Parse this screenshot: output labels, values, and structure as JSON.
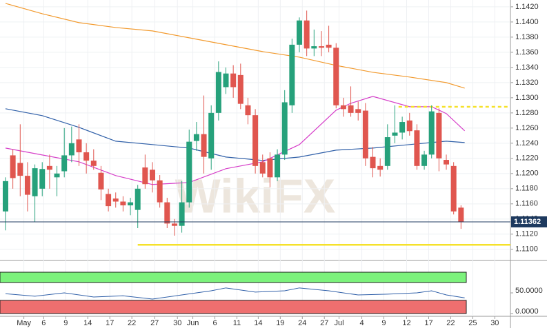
{
  "chart_data": {
    "type": "candlestick",
    "watermark": "WikiFX",
    "xlim": [
      -0.75,
      68.73
    ],
    "ylim": [
      1.1088,
      1.1429
    ],
    "xticks": [
      {
        "value": 2.5,
        "label": "May"
      },
      {
        "value": 5.2,
        "label": "6"
      },
      {
        "value": 8.2,
        "label": "9"
      },
      {
        "value": 11.2,
        "label": "14"
      },
      {
        "value": 14.2,
        "label": "17"
      },
      {
        "value": 17.2,
        "label": "22"
      },
      {
        "value": 20.3,
        "label": "27"
      },
      {
        "value": 23.4,
        "label": "30"
      },
      {
        "value": 25.5,
        "label": "Jun"
      },
      {
        "value": 28.5,
        "label": "6"
      },
      {
        "value": 31.5,
        "label": "11"
      },
      {
        "value": 34.4,
        "label": "14"
      },
      {
        "value": 37.4,
        "label": "19"
      },
      {
        "value": 40.4,
        "label": "24"
      },
      {
        "value": 43.4,
        "label": "27"
      },
      {
        "value": 45.4,
        "label": "Jul"
      },
      {
        "value": 48.5,
        "label": "4"
      },
      {
        "value": 51.5,
        "label": "9"
      },
      {
        "value": 54.6,
        "label": "12"
      },
      {
        "value": 57.6,
        "label": "17"
      },
      {
        "value": 60.6,
        "label": "22"
      },
      {
        "value": 63.6,
        "label": "25"
      },
      {
        "value": 66.6,
        "label": "30"
      }
    ],
    "yticks": [
      {
        "value": 1.11,
        "label": "1.1100"
      },
      {
        "value": 1.112,
        "label": "1.1120"
      },
      {
        "value": 1.114,
        "label": "1.1140"
      },
      {
        "value": 1.116,
        "label": "1.1160"
      },
      {
        "value": 1.118,
        "label": "1.1180"
      },
      {
        "value": 1.12,
        "label": "1.1200"
      },
      {
        "value": 1.122,
        "label": "1.1220"
      },
      {
        "value": 1.124,
        "label": "1.1240"
      },
      {
        "value": 1.126,
        "label": "1.1260"
      },
      {
        "value": 1.128,
        "label": "1.1280"
      },
      {
        "value": 1.13,
        "label": "1.1300"
      },
      {
        "value": 1.132,
        "label": "1.1320"
      },
      {
        "value": 1.134,
        "label": "1.1340"
      },
      {
        "value": 1.136,
        "label": "1.1360"
      },
      {
        "value": 1.138,
        "label": "1.1380"
      },
      {
        "value": 1.14,
        "label": "1.1400"
      },
      {
        "value": 1.142,
        "label": "1.1420"
      }
    ],
    "grid": true,
    "up_color": "#26a17b",
    "down_color": "#e0564f",
    "open": [
      1.115,
      1.1224,
      1.1214,
      1.1197,
      1.117,
      1.118,
      1.121,
      1.1195,
      1.1203,
      1.1224,
      1.1245,
      1.1228,
      1.1217,
      1.1201,
      1.1173,
      1.1167,
      1.1163,
      1.1158,
      1.1152,
      1.1208,
      1.1205,
      1.1191,
      1.1162,
      1.1134,
      1.1131,
      1.1162,
      1.1243,
      1.1252,
      1.122,
      1.128,
      1.1314,
      1.1332,
      1.133,
      1.129,
      1.1277,
      1.1215,
      1.122,
      1.1195,
      1.1225,
      1.129,
      1.137,
      1.1402,
      1.1365,
      1.1368,
      1.137,
      1.1366,
      1.129,
      1.129,
      1.1285,
      1.1283,
      1.1222,
      1.121,
      1.121,
      1.125,
      1.1254,
      1.127,
      1.1257,
      1.121,
      1.1225,
      1.128,
      1.1218,
      1.121,
      1.1155
    ],
    "high": [
      1.1195,
      1.1232,
      1.1265,
      1.1215,
      1.1212,
      1.1215,
      1.1225,
      1.121,
      1.126,
      1.1262,
      1.1265,
      1.124,
      1.1232,
      1.121,
      1.118,
      1.1175,
      1.117,
      1.1168,
      1.1185,
      1.1225,
      1.1215,
      1.1198,
      1.1168,
      1.114,
      1.119,
      1.1258,
      1.1268,
      1.1303,
      1.129,
      1.1348,
      1.134,
      1.1343,
      1.1345,
      1.13,
      1.1285,
      1.1225,
      1.1228,
      1.1232,
      1.131,
      1.1378,
      1.1406,
      1.1415,
      1.139,
      1.1388,
      1.1395,
      1.1372,
      1.13,
      1.1315,
      1.1295,
      1.1293,
      1.1235,
      1.122,
      1.1265,
      1.129,
      1.1275,
      1.128,
      1.1265,
      1.123,
      1.129,
      1.1286,
      1.1225,
      1.1215,
      1.1158
    ],
    "low": [
      1.1125,
      1.118,
      1.117,
      1.115,
      1.1136,
      1.117,
      1.118,
      1.117,
      1.1195,
      1.1215,
      1.121,
      1.12,
      1.1205,
      1.1165,
      1.115,
      1.1155,
      1.115,
      1.1145,
      1.1128,
      1.118,
      1.1175,
      1.1155,
      1.1128,
      1.1118,
      1.1122,
      1.1155,
      1.123,
      1.12,
      1.1205,
      1.127,
      1.1305,
      1.13,
      1.1285,
      1.1265,
      1.12,
      1.1195,
      1.1182,
      1.119,
      1.1218,
      1.128,
      1.136,
      1.1355,
      1.1355,
      1.1355,
      1.136,
      1.1286,
      1.1275,
      1.1275,
      1.127,
      1.121,
      1.1195,
      1.1196,
      1.1205,
      1.124,
      1.1245,
      1.125,
      1.1205,
      1.1205,
      1.122,
      1.1203,
      1.1205,
      1.1146,
      1.1127
    ],
    "close": [
      1.119,
      1.1194,
      1.1197,
      1.1172,
      1.1207,
      1.1206,
      1.1205,
      1.12,
      1.1224,
      1.124,
      1.1228,
      1.1217,
      1.121,
      1.1179,
      1.1157,
      1.1163,
      1.1158,
      1.1162,
      1.118,
      1.1186,
      1.1191,
      1.1162,
      1.1134,
      1.1131,
      1.1162,
      1.1242,
      1.1252,
      1.1222,
      1.128,
      1.1334,
      1.1332,
      1.1314,
      1.1292,
      1.1277,
      1.121,
      1.12,
      1.1195,
      1.1225,
      1.1294,
      1.137,
      1.1402,
      1.1365,
      1.1368,
      1.1366,
      1.1366,
      1.129,
      1.1285,
      1.128,
      1.128,
      1.122,
      1.1207,
      1.1205,
      1.1248,
      1.1254,
      1.1268,
      1.1256,
      1.121,
      1.1225,
      1.1282,
      1.122,
      1.1212,
      1.115,
      1.1136
    ],
    "lines": [
      {
        "color": "#f29a2e",
        "x": [
          0,
          5,
          10,
          15,
          20,
          25,
          30,
          35,
          40,
          45,
          50,
          55,
          60,
          62.5
        ],
        "values": [
          1.14245,
          1.14109,
          1.13991,
          1.13927,
          1.13882,
          1.13791,
          1.137,
          1.13609,
          1.13536,
          1.13427,
          1.13336,
          1.13273,
          1.132,
          1.13127
        ]
      },
      {
        "color": "#2f5fa8",
        "x": [
          0,
          5,
          10,
          15,
          20,
          25,
          30,
          35,
          40,
          45,
          50,
          55,
          60,
          62.5
        ],
        "values": [
          1.12855,
          1.12764,
          1.12609,
          1.12427,
          1.12382,
          1.12336,
          1.12218,
          1.12173,
          1.12218,
          1.12309,
          1.12336,
          1.12382,
          1.12427,
          1.12409
        ]
      },
      {
        "color": "#d63fc9",
        "x": [
          0,
          5,
          10,
          15,
          20,
          25,
          30,
          35,
          40,
          45,
          47,
          50,
          55,
          58,
          60,
          62.5
        ],
        "values": [
          1.12336,
          1.12245,
          1.12155,
          1.11973,
          1.11855,
          1.11882,
          1.12064,
          1.12155,
          1.12382,
          1.12836,
          1.12927,
          1.13018,
          1.12882,
          1.12882,
          1.12791,
          1.12564
        ]
      }
    ],
    "levels": [
      {
        "value": 1.1288,
        "x": [
          53.5,
          68.5
        ],
        "color": "#f5e12a",
        "dashed": true
      },
      {
        "value": 1.1106,
        "x": [
          18,
          68.73
        ],
        "color": "#f5e12a",
        "dashed": false
      }
    ],
    "last_price": 1.11362,
    "indicator": {
      "ylim": [
        -8.3,
        116.7
      ],
      "yticks": [
        {
          "value": 0,
          "label": "0.0000"
        },
        {
          "value": 50,
          "label": "50.0000"
        }
      ],
      "upper_band": [
        75,
        100
      ],
      "upper_color": "#7cf27c",
      "lower_band": [
        0,
        32
      ],
      "lower_color": "#ee6f6f",
      "color": "#2f5fa8",
      "x": [
        0,
        4,
        8,
        12,
        16,
        20,
        24,
        28,
        30,
        34,
        38,
        40,
        44,
        48,
        52,
        56,
        58,
        60,
        62.5
      ],
      "values": [
        48,
        42,
        50,
        40,
        43,
        35,
        45,
        55,
        62,
        52,
        55,
        62,
        55,
        45,
        47,
        50,
        55,
        45,
        38
      ]
    }
  }
}
